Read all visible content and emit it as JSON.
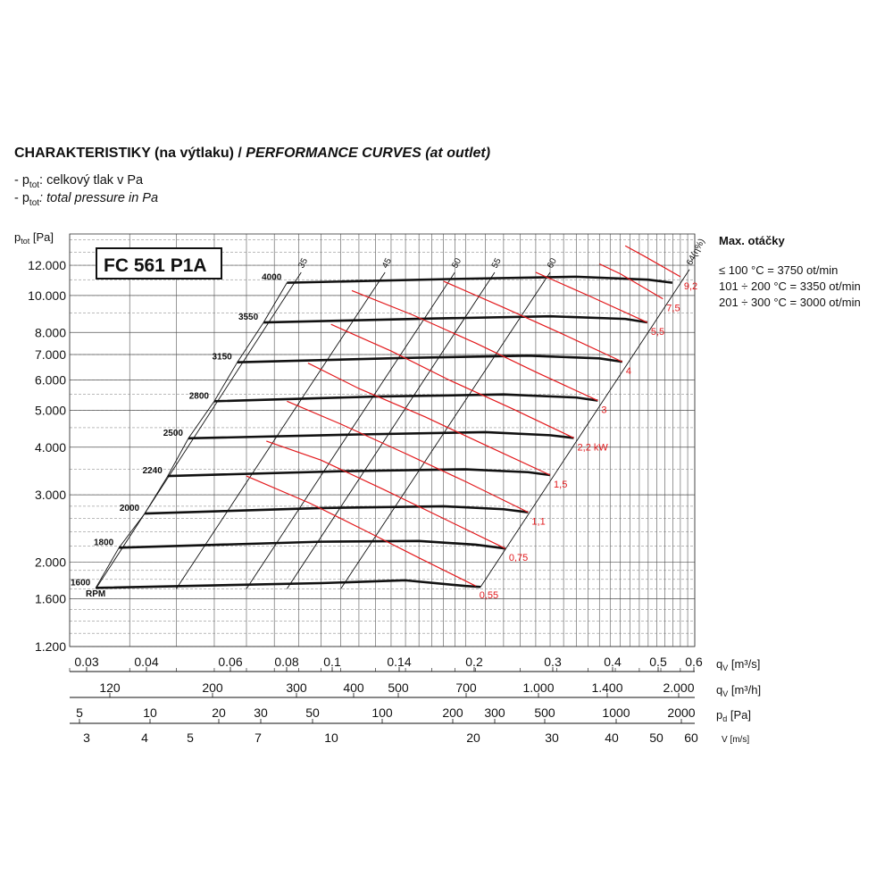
{
  "header": {
    "title_cz": "CHARAKTERISTIKY (na výtlaku) / ",
    "title_en": "PERFORMANCE CURVES (at outlet)",
    "legend1_p": "- p",
    "legend1_sub": "tot",
    "legend1_rest": ": celkový tlak v Pa",
    "legend2_p": "- p",
    "legend2_sub": "tot",
    "legend2_rest": ": total pressure in Pa"
  },
  "max_speed": {
    "heading": "Max. otáčky",
    "rows": [
      "≤ 100 °C = 3750 ot/min",
      "101 ÷ 200 °C = 3350 ot/min",
      "201 ÷ 300 °C = 3000 ot/min"
    ]
  },
  "chart_data": {
    "type": "line",
    "model": "FC 561 P1A",
    "y_axis": {
      "label": "p",
      "label_sub": "tot",
      "label_unit": " [Pa]",
      "scale": "log",
      "range": [
        1200,
        14500
      ],
      "ticks": [
        "1.200",
        "1.600",
        "2.000",
        "3.000",
        "4.000",
        "5.000",
        "6.000",
        "7.000",
        "8.000",
        "10.000",
        "12.000"
      ],
      "tick_values": [
        1200,
        1600,
        2000,
        3000,
        4000,
        5000,
        6000,
        7000,
        8000,
        10000,
        12000
      ]
    },
    "x_axes": [
      {
        "label": "q",
        "label_sub": "V",
        "label_unit": " [m³/s]",
        "scale": "log",
        "range": [
          0.03,
          0.6
        ],
        "ticks": [
          "0.03",
          "0.04",
          "0.06",
          "0.08",
          "0.1",
          "0.14",
          "0.2",
          "0.3",
          "0.4",
          "0.5",
          "0.6"
        ]
      },
      {
        "label": "q",
        "label_sub": "V",
        "label_unit": " [m³/h]",
        "ticks": [
          "120",
          "200",
          "300",
          "400",
          "500",
          "700",
          "1.000",
          "1.400",
          "2.000"
        ]
      },
      {
        "label": "p",
        "label_sub": "d",
        "label_unit": " [Pa]",
        "ticks": [
          "5",
          "10",
          "20",
          "30",
          "50",
          "100",
          "200",
          "300",
          "500",
          "1000",
          "2000"
        ]
      },
      {
        "label": "V [m/s]",
        "ticks": [
          "3",
          "4",
          "5",
          "7",
          "10",
          "20",
          "30",
          "40",
          "50",
          "60"
        ]
      }
    ],
    "speed_unit_label": "RPM",
    "speed_curves": [
      {
        "rpm": "1600",
        "points": [
          [
            0.034,
            1710
          ],
          [
            0.1,
            1760
          ],
          [
            0.15,
            1790
          ],
          [
            0.2,
            1730
          ],
          [
            0.215,
            1720
          ]
        ]
      },
      {
        "rpm": "1800",
        "points": [
          [
            0.038,
            2180
          ],
          [
            0.1,
            2260
          ],
          [
            0.16,
            2270
          ],
          [
            0.21,
            2220
          ],
          [
            0.242,
            2170
          ]
        ]
      },
      {
        "rpm": "2000",
        "points": [
          [
            0.043,
            2680
          ],
          [
            0.1,
            2770
          ],
          [
            0.18,
            2800
          ],
          [
            0.24,
            2750
          ],
          [
            0.27,
            2700
          ]
        ]
      },
      {
        "rpm": "2240",
        "points": [
          [
            0.048,
            3360
          ],
          [
            0.11,
            3460
          ],
          [
            0.2,
            3500
          ],
          [
            0.27,
            3440
          ],
          [
            0.3,
            3380
          ]
        ]
      },
      {
        "rpm": "2500",
        "points": [
          [
            0.053,
            4220
          ],
          [
            0.12,
            4320
          ],
          [
            0.22,
            4380
          ],
          [
            0.3,
            4300
          ],
          [
            0.336,
            4230
          ]
        ]
      },
      {
        "rpm": "2800",
        "points": [
          [
            0.06,
            5280
          ],
          [
            0.13,
            5430
          ],
          [
            0.24,
            5500
          ],
          [
            0.34,
            5400
          ],
          [
            0.377,
            5300
          ]
        ]
      },
      {
        "rpm": "3150",
        "points": [
          [
            0.067,
            6680
          ],
          [
            0.15,
            6860
          ],
          [
            0.27,
            6950
          ],
          [
            0.38,
            6840
          ],
          [
            0.424,
            6700
          ]
        ]
      },
      {
        "rpm": "3550",
        "points": [
          [
            0.076,
            8500
          ],
          [
            0.17,
            8700
          ],
          [
            0.3,
            8820
          ],
          [
            0.43,
            8680
          ],
          [
            0.478,
            8500
          ]
        ]
      },
      {
        "rpm": "4000",
        "points": [
          [
            0.085,
            10800
          ],
          [
            0.19,
            11050
          ],
          [
            0.34,
            11200
          ],
          [
            0.48,
            11000
          ],
          [
            0.539,
            10800
          ]
        ]
      }
    ],
    "efficiency_lines": [
      {
        "label": "35",
        "from": [
          0.034,
          1700
        ],
        "to": [
          0.091,
          11500
        ]
      },
      {
        "label": "45",
        "from": [
          0.05,
          1700
        ],
        "to": [
          0.136,
          11500
        ]
      },
      {
        "label": "50",
        "from": [
          0.07,
          1700
        ],
        "to": [
          0.19,
          11500
        ]
      },
      {
        "label": "55",
        "from": [
          0.085,
          1700
        ],
        "to": [
          0.23,
          11500
        ]
      },
      {
        "label": "60",
        "from": [
          0.11,
          1700
        ],
        "to": [
          0.3,
          11500
        ]
      },
      {
        "label": "64(η%)",
        "from": [
          0.215,
          1720
        ],
        "to": [
          0.585,
          11700
        ]
      }
    ],
    "power_curves": [
      {
        "label": "0,55",
        "points": [
          [
            0.21,
            1730
          ],
          [
            0.16,
            2050
          ],
          [
            0.125,
            2400
          ],
          [
            0.095,
            2850
          ],
          [
            0.07,
            3360
          ]
        ]
      },
      {
        "label": "0,75",
        "points": [
          [
            0.242,
            2170
          ],
          [
            0.18,
            2600
          ],
          [
            0.135,
            3100
          ],
          [
            0.1,
            3700
          ],
          [
            0.077,
            4150
          ]
        ]
      },
      {
        "label": "1,1",
        "points": [
          [
            0.27,
            2700
          ],
          [
            0.2,
            3250
          ],
          [
            0.15,
            3850
          ],
          [
            0.11,
            4600
          ],
          [
            0.085,
            5280
          ]
        ]
      },
      {
        "label": "1,5",
        "points": [
          [
            0.3,
            3380
          ],
          [
            0.22,
            4050
          ],
          [
            0.165,
            4800
          ],
          [
            0.12,
            5700
          ],
          [
            0.094,
            6650
          ]
        ]
      },
      {
        "label": "2,2 kW",
        "points": [
          [
            0.336,
            4230
          ],
          [
            0.25,
            5050
          ],
          [
            0.185,
            6000
          ],
          [
            0.14,
            7150
          ],
          [
            0.105,
            8400
          ]
        ]
      },
      {
        "label": "3",
        "points": [
          [
            0.377,
            5300
          ],
          [
            0.28,
            6300
          ],
          [
            0.21,
            7500
          ],
          [
            0.155,
            8900
          ],
          [
            0.116,
            10300
          ]
        ]
      },
      {
        "label": "4",
        "points": [
          [
            0.424,
            6700
          ],
          [
            0.32,
            7900
          ],
          [
            0.24,
            9300
          ],
          [
            0.18,
            10900
          ]
        ]
      },
      {
        "label": "5,5",
        "points": [
          [
            0.478,
            8500
          ],
          [
            0.36,
            10000
          ],
          [
            0.28,
            11500
          ]
        ]
      },
      {
        "label": "7,5",
        "points": [
          [
            0.515,
            9800
          ],
          [
            0.42,
            11400
          ],
          [
            0.38,
            12100
          ]
        ]
      },
      {
        "label": "9,2",
        "points": [
          [
            0.56,
            11200
          ],
          [
            0.47,
            12700
          ],
          [
            0.43,
            13500
          ]
        ]
      }
    ]
  }
}
